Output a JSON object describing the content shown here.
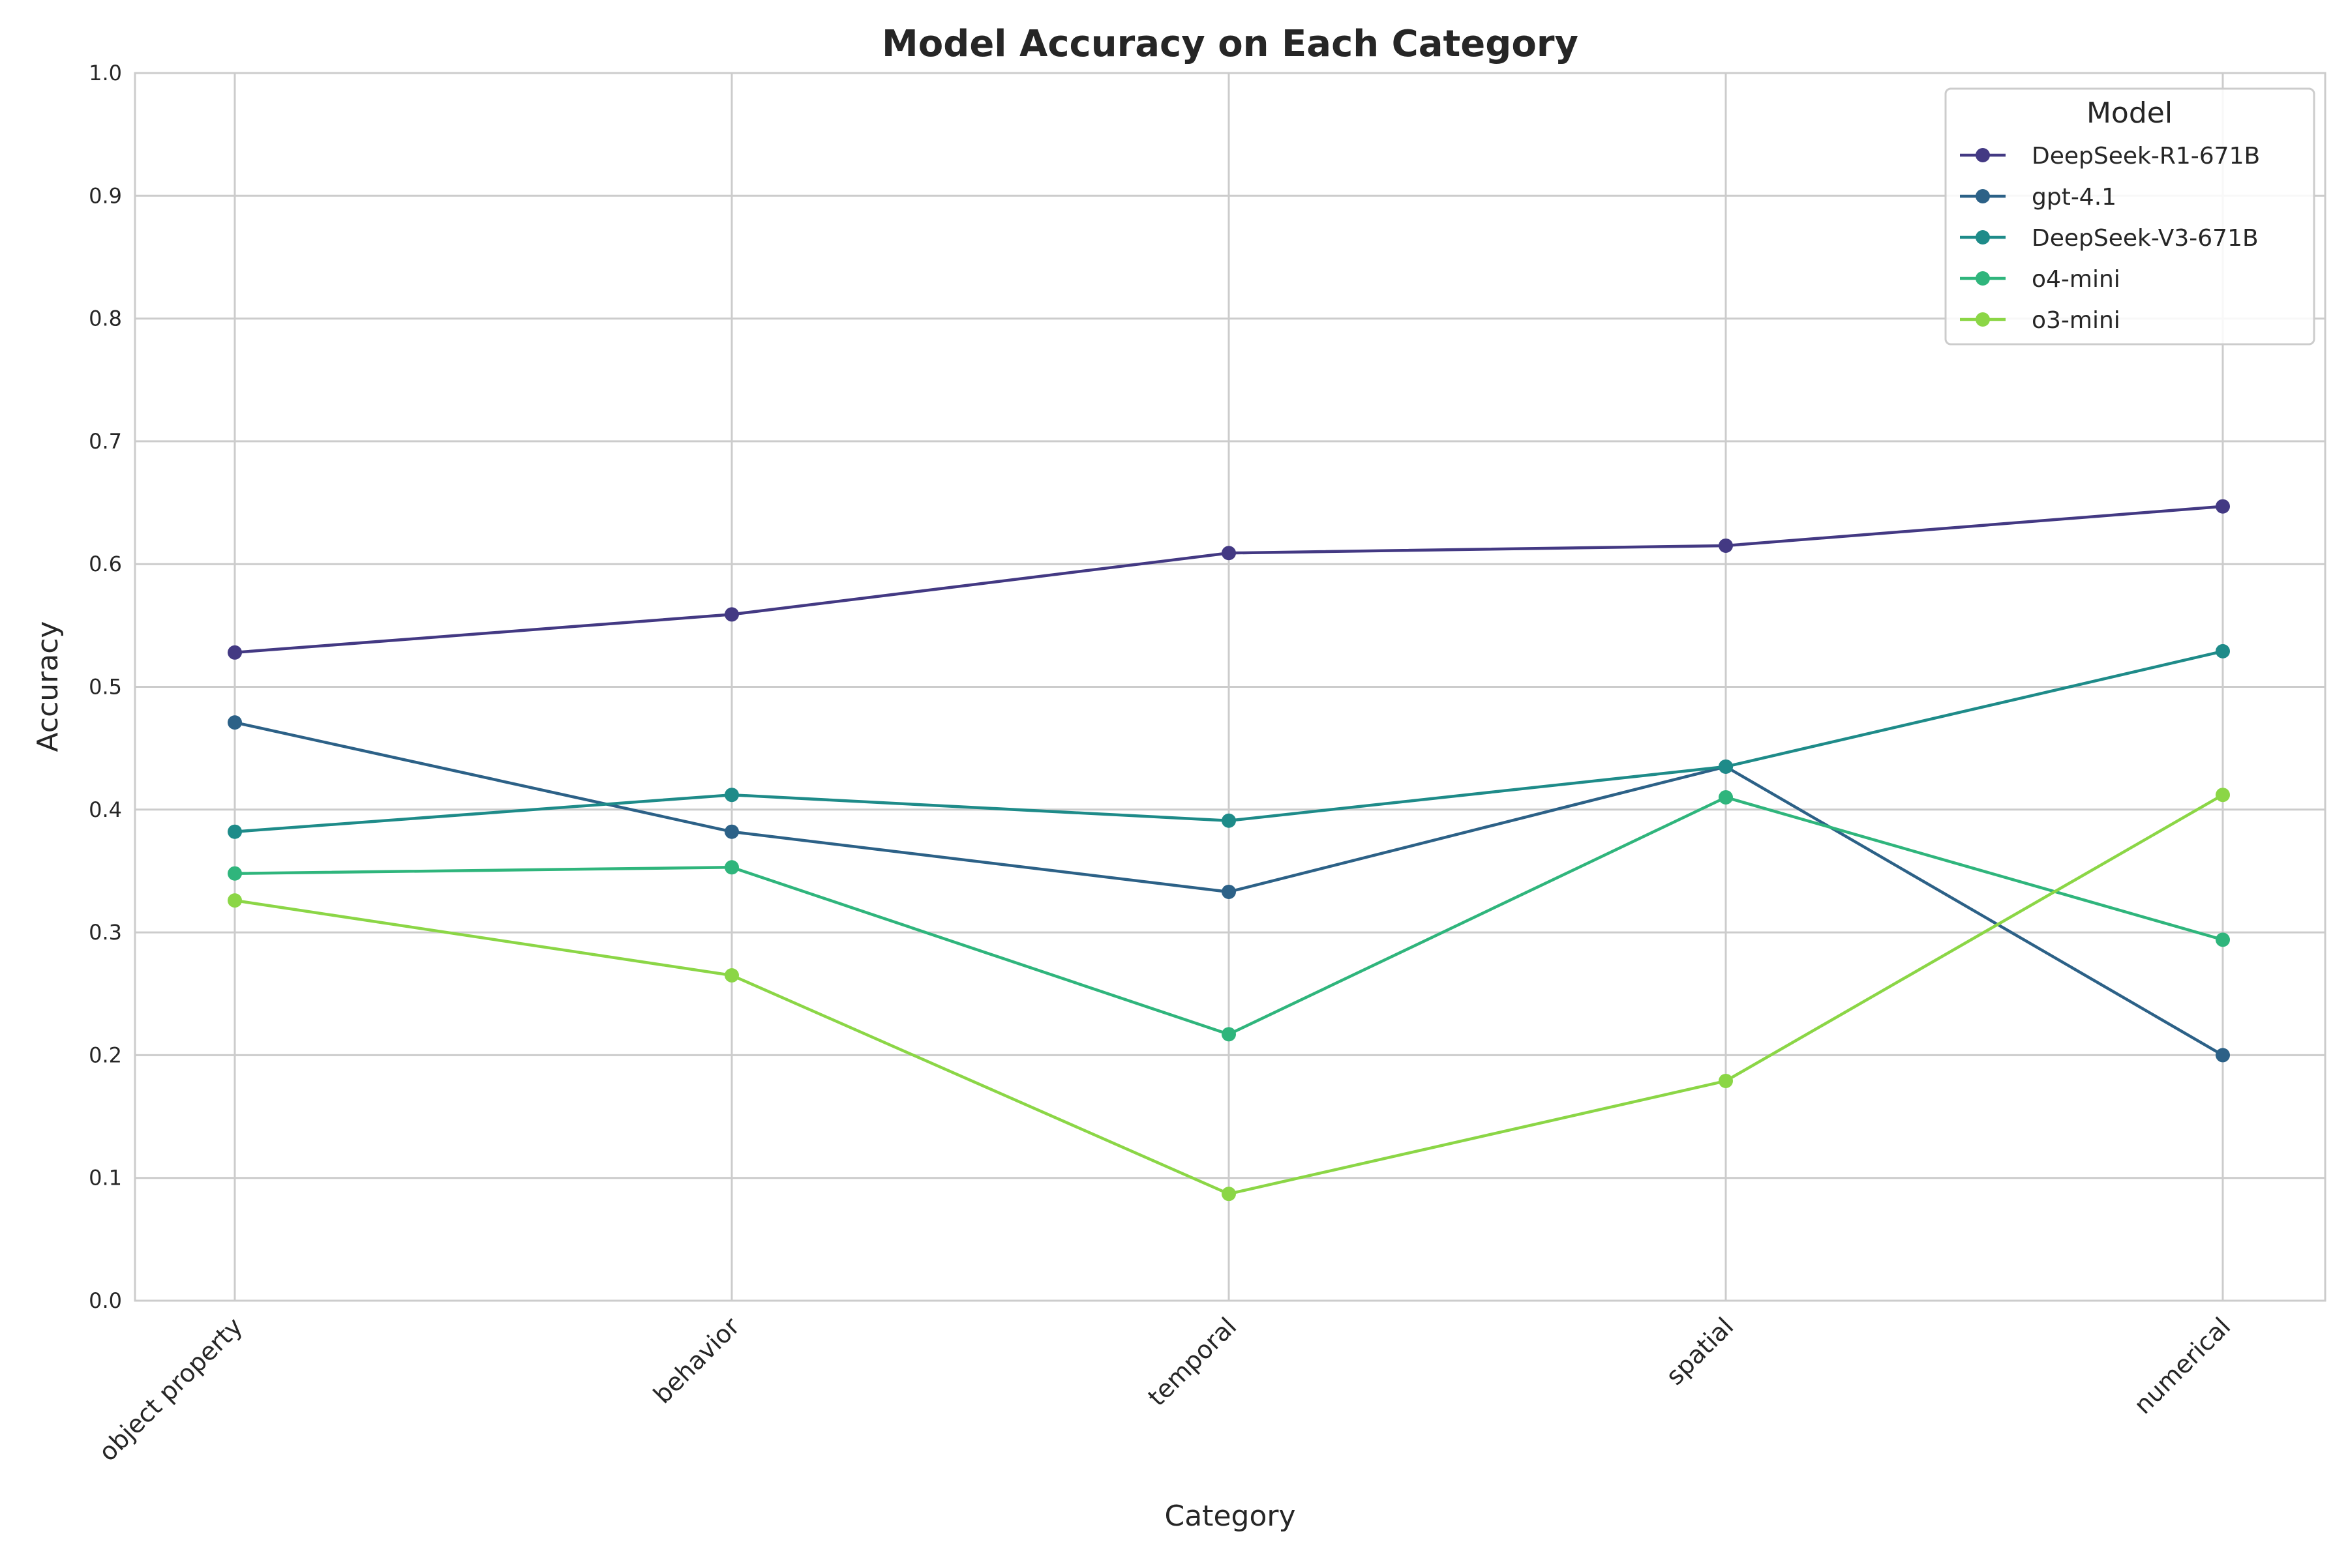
{
  "chart_data": {
    "type": "line",
    "title": "Model Accuracy on Each Category",
    "xlabel": "Category",
    "ylabel": "Accuracy",
    "categories": [
      "object property",
      "behavior",
      "temporal",
      "spatial",
      "numerical"
    ],
    "ylim": [
      0,
      1
    ],
    "yticks": [
      "0.0",
      "0.1",
      "0.2",
      "0.3",
      "0.4",
      "0.5",
      "0.6",
      "0.7",
      "0.8",
      "0.9",
      "1.0"
    ],
    "grid": true,
    "legend": {
      "title": "Model",
      "placement": "top-right"
    },
    "series": [
      {
        "name": "DeepSeek-R1-671B",
        "color": "#433983",
        "values": [
          0.528,
          0.559,
          0.609,
          0.615,
          0.647
        ]
      },
      {
        "name": "gpt-4.1",
        "color": "#2c6187",
        "values": [
          0.471,
          0.382,
          0.333,
          0.435,
          0.2
        ]
      },
      {
        "name": "DeepSeek-V3-671B",
        "color": "#1e8b89",
        "values": [
          0.382,
          0.412,
          0.391,
          0.435,
          0.529
        ]
      },
      {
        "name": "o4-mini",
        "color": "#2fb57c",
        "values": [
          0.348,
          0.353,
          0.217,
          0.41,
          0.294
        ]
      },
      {
        "name": "o3-mini",
        "color": "#8bd646",
        "values": [
          0.326,
          0.265,
          0.087,
          0.179,
          0.412
        ]
      }
    ]
  }
}
